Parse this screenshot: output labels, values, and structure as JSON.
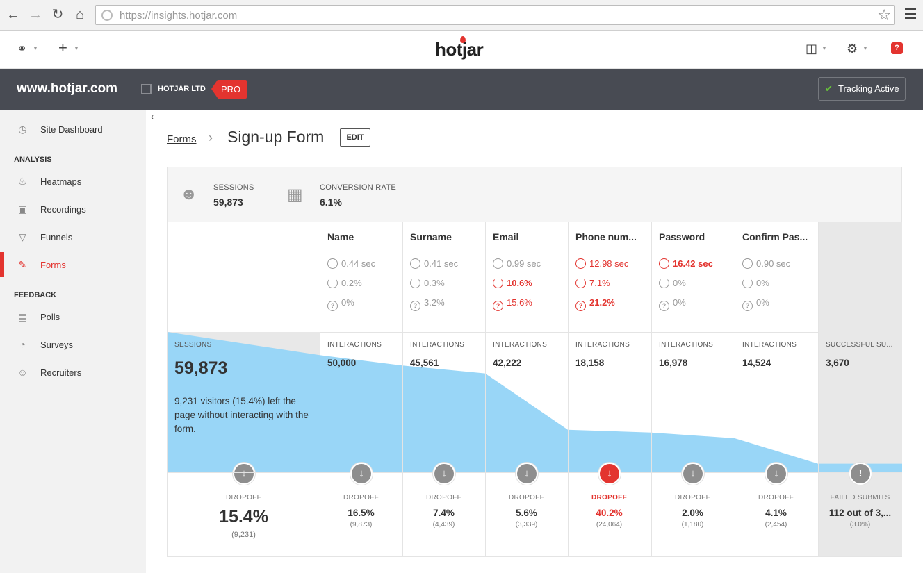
{
  "browser": {
    "url": "https://insights.hotjar.com"
  },
  "header": {
    "logo": "hotjar",
    "feedback_badge": "?"
  },
  "sitebar": {
    "site": "www.hotjar.com",
    "org": "HOTJAR LTD",
    "plan": "PRO",
    "tracking": "Tracking Active"
  },
  "sidebar": {
    "dashboard": "Site Dashboard",
    "analysis_heading": "ANALYSIS",
    "analysis": [
      {
        "label": "Heatmaps",
        "icon": "flame-icon"
      },
      {
        "label": "Recordings",
        "icon": "video-icon"
      },
      {
        "label": "Funnels",
        "icon": "funnel-icon"
      },
      {
        "label": "Forms",
        "icon": "form-edit-icon",
        "active": true
      }
    ],
    "feedback_heading": "FEEDBACK",
    "feedback": [
      {
        "label": "Polls",
        "icon": "bar-chart-icon"
      },
      {
        "label": "Surveys",
        "icon": "pie-chart-icon"
      },
      {
        "label": "Recruiters",
        "icon": "user-icon"
      }
    ]
  },
  "breadcrumb": {
    "parent": "Forms",
    "title": "Sign-up Form",
    "edit": "EDIT"
  },
  "stats": {
    "sessions_label": "SESSIONS",
    "sessions_value": "59,873",
    "conversion_label": "CONVERSION RATE",
    "conversion_value": "6.1%"
  },
  "funnel": {
    "sessions_label": "SESSIONS",
    "sessions_value": "59,873",
    "sessions_note": "9,231 visitors (15.4%) left the page without interacting with the form.",
    "first_drop_label": "DROPOFF",
    "first_drop_value": "15.4%",
    "first_drop_count": "(9,231)",
    "fields": [
      {
        "name": "Name",
        "time": "0.44 sec",
        "refill": "0.2%",
        "blank": "0%",
        "interactions_label": "INTERACTIONS",
        "interactions": "50,000",
        "drop_label": "DROPOFF",
        "drop": "16.5%",
        "drop_count": "(9,873)",
        "interactions_value": 50000
      },
      {
        "name": "Surname",
        "time": "0.41 sec",
        "refill": "0.3%",
        "blank": "3.2%",
        "interactions_label": "INTERACTIONS",
        "interactions": "45,561",
        "drop_label": "DROPOFF",
        "drop": "7.4%",
        "drop_count": "(4,439)",
        "interactions_value": 45561
      },
      {
        "name": "Email",
        "time": "0.99 sec",
        "refill": "10.6%",
        "blank": "15.6%",
        "interactions_label": "INTERACTIONS",
        "interactions": "42,222",
        "drop_label": "DROPOFF",
        "drop": "5.6%",
        "drop_count": "(3,339)",
        "interactions_value": 42222
      },
      {
        "name": "Phone num...",
        "time": "12.98 sec",
        "refill": "7.1%",
        "blank": "21.2%",
        "interactions_label": "INTERACTIONS",
        "interactions": "18,158",
        "drop_label": "DROPOFF",
        "drop": "40.2%",
        "drop_count": "(24,064)",
        "interactions_value": 18158
      },
      {
        "name": "Password",
        "time": "16.42 sec",
        "refill": "0%",
        "blank": "0%",
        "interactions_label": "INTERACTIONS",
        "interactions": "16,978",
        "drop_label": "DROPOFF",
        "drop": "2.0%",
        "drop_count": "(1,180)",
        "interactions_value": 16978
      },
      {
        "name": "Confirm Pas...",
        "time": "0.90 sec",
        "refill": "0%",
        "blank": "0%",
        "interactions_label": "INTERACTIONS",
        "interactions": "14,524",
        "drop_label": "DROPOFF",
        "drop": "4.1%",
        "drop_count": "(2,454)",
        "interactions_value": 14524
      }
    ],
    "success": {
      "label": "SUCCESSFUL SU...",
      "value": "3,670",
      "failed_label": "FAILED SUBMITS",
      "failed_value": "112 out of 3,...",
      "failed_pct": "(3.0%)",
      "value_num": 3670
    },
    "sessions_num": 59873
  },
  "colors": {
    "accent": "#e3342f",
    "funnel_fill": "#99d6f7",
    "sitebar": "#484b53"
  }
}
